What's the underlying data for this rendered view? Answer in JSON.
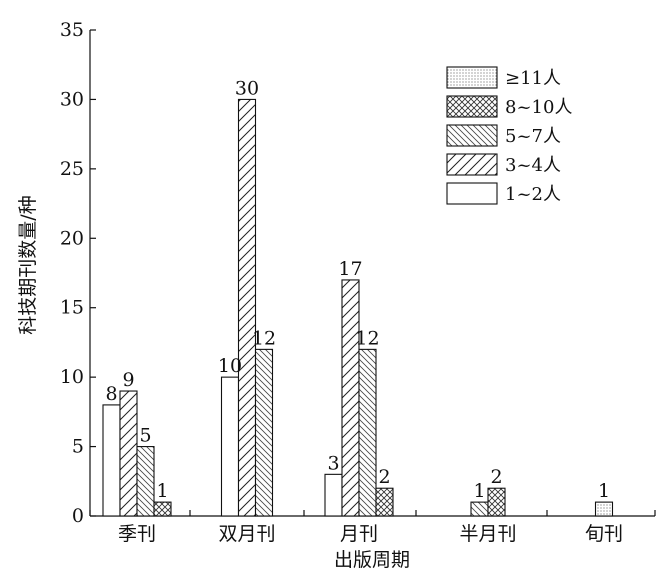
{
  "chart_data": {
    "type": "bar",
    "xlabel": "出版周期",
    "ylabel": "科技期刊数量/种",
    "ylim": [
      0,
      35
    ],
    "yticks": [
      0,
      5,
      10,
      15,
      20,
      25,
      30,
      35
    ],
    "legend_position": "top-right",
    "categories": [
      "季刊",
      "双月刊",
      "月刊",
      "半月刊",
      "旬刊"
    ],
    "series": [
      {
        "name": "1~2人",
        "pattern": "blank",
        "values": [
          8,
          10,
          3,
          null,
          null
        ]
      },
      {
        "name": "3~4人",
        "pattern": "wide-diagonal",
        "values": [
          9,
          30,
          17,
          null,
          null
        ]
      },
      {
        "name": "5~7人",
        "pattern": "fine-diagonal",
        "values": [
          5,
          12,
          12,
          1,
          null
        ]
      },
      {
        "name": "8~10人",
        "pattern": "cross-hatch",
        "values": [
          1,
          null,
          2,
          2,
          null
        ]
      },
      {
        "name": "≥11人",
        "pattern": "dots",
        "values": [
          null,
          null,
          null,
          null,
          1
        ]
      }
    ],
    "legend_order": [
      "≥11人",
      "8~10人",
      "5~7人",
      "3~4人",
      "1~2人"
    ]
  }
}
